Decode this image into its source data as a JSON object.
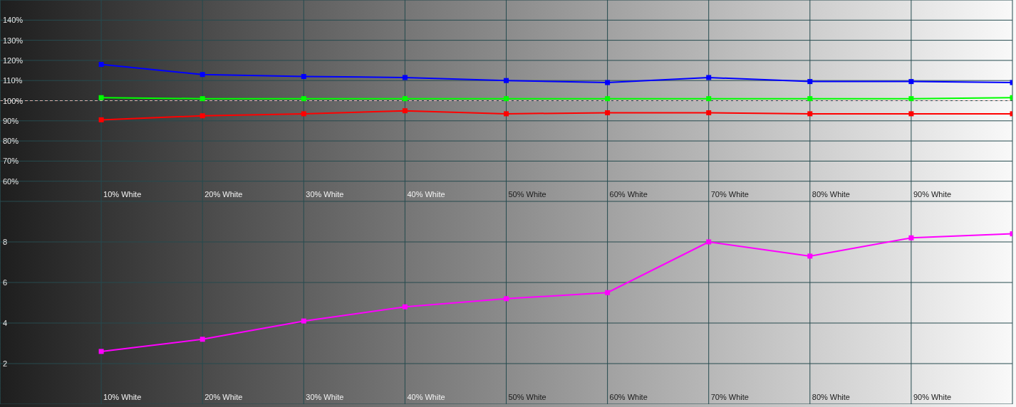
{
  "chart_data": [
    {
      "type": "line",
      "categories": [
        "10% White",
        "20% White",
        "30% White",
        "40% White",
        "50% White",
        "60% White",
        "70% White",
        "80% White",
        "90% White",
        null
      ],
      "series": [
        {
          "color": "#0000ff",
          "values": [
            118,
            113,
            112,
            111.5,
            110,
            109,
            111.5,
            109.5,
            109.5,
            109
          ]
        },
        {
          "color": "#00ff00",
          "values": [
            101.5,
            101,
            101,
            101,
            101,
            101,
            101,
            101,
            101,
            101.5
          ]
        },
        {
          "color": "#ff0000",
          "values": [
            90.5,
            92.5,
            93.5,
            95,
            93.5,
            94,
            94,
            93.5,
            93.5,
            93.5
          ]
        }
      ],
      "ylim": [
        50,
        150
      ],
      "yticks": [
        {
          "value": 60,
          "label": "60%"
        },
        {
          "value": 70,
          "label": "70%"
        },
        {
          "value": 80,
          "label": "80%"
        },
        {
          "value": 90,
          "label": "90%"
        },
        {
          "value": 100,
          "label": "100%"
        },
        {
          "value": 110,
          "label": "110%"
        },
        {
          "value": 120,
          "label": "120%"
        },
        {
          "value": 130,
          "label": "130%"
        },
        {
          "value": 140,
          "label": "140%"
        }
      ],
      "grid": true,
      "marker": "square",
      "line_style": "solid",
      "ref_lines": [
        {
          "axis": "y",
          "value": 100,
          "color": "#ffffff",
          "line_style": "dashed"
        }
      ]
    },
    {
      "type": "line",
      "categories": [
        "10% White",
        "20% White",
        "30% White",
        "40% White",
        "50% White",
        "60% White",
        "70% White",
        "80% White",
        "90% White",
        null
      ],
      "series": [
        {
          "color": "#ff00ff",
          "values": [
            2.6,
            3.2,
            4.1,
            4.8,
            5.2,
            5.5,
            8.0,
            7.3,
            8.2,
            8.4
          ]
        }
      ],
      "ylim": [
        0,
        10
      ],
      "yticks": [
        2,
        4,
        6,
        8
      ],
      "grid": true,
      "marker": "square",
      "line_style": "solid"
    }
  ]
}
